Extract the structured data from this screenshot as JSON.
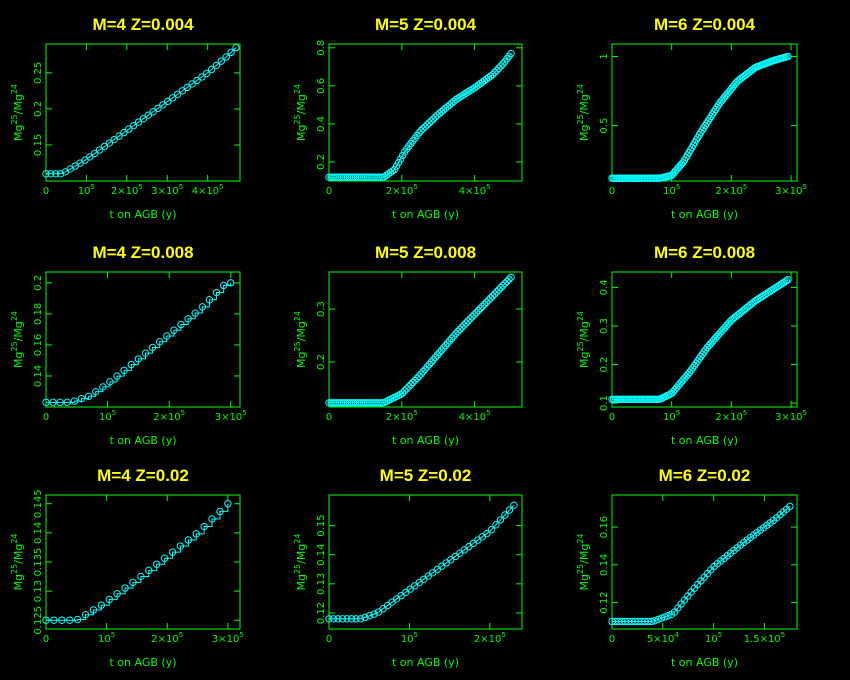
{
  "colors": {
    "background": "#000000",
    "axes": "#00ff00",
    "title": "#ffff00",
    "series": "#00ffff"
  },
  "chart_data": [
    {
      "type": "line",
      "title": "M=4   Z=0.004",
      "xlabel": "t on AGB (y)",
      "ylabel": [
        "Mg",
        "25",
        "/Mg",
        "24"
      ],
      "xlim": [
        0,
        480000
      ],
      "ylim": [
        0.1,
        0.29
      ],
      "xticks": [
        {
          "v": 0,
          "t": "0"
        },
        {
          "v": 100000,
          "t": "10",
          "e": "5"
        },
        {
          "v": 200000,
          "t": "2×10",
          "e": "5"
        },
        {
          "v": 300000,
          "t": "3×10",
          "e": "5"
        },
        {
          "v": 400000,
          "t": "4×10",
          "e": "5"
        }
      ],
      "yticks": [
        {
          "v": 0.15,
          "t": "0.15"
        },
        {
          "v": 0.2,
          "t": "0.2"
        },
        {
          "v": 0.25,
          "t": "0.25"
        }
      ],
      "step": false,
      "npts": 40,
      "anchors": [
        [
          0,
          0.11
        ],
        [
          40000,
          0.11
        ],
        [
          70000,
          0.12
        ],
        [
          100000,
          0.13
        ],
        [
          150000,
          0.15
        ],
        [
          200000,
          0.17
        ],
        [
          250000,
          0.19
        ],
        [
          300000,
          0.21
        ],
        [
          350000,
          0.23
        ],
        [
          400000,
          0.25
        ],
        [
          450000,
          0.274
        ],
        [
          470000,
          0.285
        ]
      ]
    },
    {
      "type": "line",
      "title": "M=5   Z=0.004",
      "xlabel": "t on AGB (y)",
      "ylabel": [
        "Mg",
        "25",
        "/Mg",
        "24"
      ],
      "xlim": [
        0,
        530000
      ],
      "ylim": [
        0.1,
        0.82
      ],
      "xticks": [
        {
          "v": 0,
          "t": "0"
        },
        {
          "v": 200000,
          "t": "2×10",
          "e": "5"
        },
        {
          "v": 400000,
          "t": "4×10",
          "e": "5"
        }
      ],
      "yticks": [
        {
          "v": 0.2,
          "t": "0.2"
        },
        {
          "v": 0.4,
          "t": "0.4"
        },
        {
          "v": 0.6,
          "t": "0.6"
        },
        {
          "v": 0.8,
          "t": "0.8"
        }
      ],
      "step": false,
      "npts": 90,
      "anchors": [
        [
          0,
          0.12
        ],
        [
          150000,
          0.12
        ],
        [
          180000,
          0.16
        ],
        [
          210000,
          0.26
        ],
        [
          250000,
          0.36
        ],
        [
          300000,
          0.45
        ],
        [
          350000,
          0.53
        ],
        [
          400000,
          0.59
        ],
        [
          450000,
          0.66
        ],
        [
          480000,
          0.72
        ],
        [
          500000,
          0.77
        ]
      ]
    },
    {
      "type": "line",
      "title": "M=6   Z=0.004",
      "xlabel": "t on AGB (y)",
      "ylabel": [
        "Mg",
        "25",
        "/Mg",
        "24"
      ],
      "xlim": [
        0,
        310000
      ],
      "ylim": [
        0.1,
        1.09
      ],
      "xticks": [
        {
          "v": 0,
          "t": "0"
        },
        {
          "v": 100000,
          "t": "10",
          "e": "5"
        },
        {
          "v": 200000,
          "t": "2×10",
          "e": "5"
        },
        {
          "v": 300000,
          "t": "3×10",
          "e": "5"
        }
      ],
      "yticks": [
        {
          "v": 0.5,
          "t": "0.5"
        },
        {
          "v": 1.0,
          "t": "1"
        }
      ],
      "step": false,
      "npts": 120,
      "anchors": [
        [
          0,
          0.12
        ],
        [
          80000,
          0.12
        ],
        [
          100000,
          0.14
        ],
        [
          120000,
          0.24
        ],
        [
          150000,
          0.46
        ],
        [
          180000,
          0.66
        ],
        [
          210000,
          0.82
        ],
        [
          240000,
          0.92
        ],
        [
          270000,
          0.97
        ],
        [
          295000,
          1.0
        ]
      ]
    },
    {
      "type": "line",
      "title": "M=4   Z=0.008",
      "xlabel": "t on AGB (y)",
      "ylabel": [
        "Mg",
        "25",
        "/Mg",
        "24"
      ],
      "xlim": [
        0,
        315000
      ],
      "ylim": [
        0.12,
        0.207
      ],
      "xticks": [
        {
          "v": 0,
          "t": "0"
        },
        {
          "v": 100000,
          "t": "10",
          "e": "5"
        },
        {
          "v": 200000,
          "t": "2×10",
          "e": "5"
        },
        {
          "v": 300000,
          "t": "3×10",
          "e": "5"
        }
      ],
      "yticks": [
        {
          "v": 0.14,
          "t": "0.14"
        },
        {
          "v": 0.16,
          "t": "0.16"
        },
        {
          "v": 0.18,
          "t": "0.18"
        },
        {
          "v": 0.2,
          "t": "0.2"
        }
      ],
      "step": true,
      "npts": 27,
      "anchors": [
        [
          0,
          0.123
        ],
        [
          40000,
          0.123
        ],
        [
          70000,
          0.127
        ],
        [
          100000,
          0.135
        ],
        [
          150000,
          0.151
        ],
        [
          200000,
          0.167
        ],
        [
          250000,
          0.183
        ],
        [
          290000,
          0.199
        ],
        [
          300000,
          0.2
        ]
      ]
    },
    {
      "type": "line",
      "title": "M=5   Z=0.008",
      "xlabel": "t on AGB (y)",
      "ylabel": [
        "Mg",
        "25",
        "/Mg",
        "24"
      ],
      "xlim": [
        0,
        530000
      ],
      "ylim": [
        0.115,
        0.37
      ],
      "xticks": [
        {
          "v": 0,
          "t": "0"
        },
        {
          "v": 200000,
          "t": "2×10",
          "e": "5"
        },
        {
          "v": 400000,
          "t": "4×10",
          "e": "5"
        }
      ],
      "yticks": [
        {
          "v": 0.2,
          "t": "0.2"
        },
        {
          "v": 0.3,
          "t": "0.3"
        }
      ],
      "step": false,
      "npts": 90,
      "anchors": [
        [
          0,
          0.123
        ],
        [
          150000,
          0.123
        ],
        [
          200000,
          0.14
        ],
        [
          250000,
          0.175
        ],
        [
          300000,
          0.215
        ],
        [
          350000,
          0.255
        ],
        [
          400000,
          0.29
        ],
        [
          450000,
          0.325
        ],
        [
          500000,
          0.36
        ]
      ]
    },
    {
      "type": "line",
      "title": "M=6   Z=0.008",
      "xlabel": "t on AGB (y)",
      "ylabel": [
        "Mg",
        "25",
        "/Mg",
        "24"
      ],
      "xlim": [
        0,
        310000
      ],
      "ylim": [
        0.09,
        0.44
      ],
      "xticks": [
        {
          "v": 0,
          "t": "0"
        },
        {
          "v": 100000,
          "t": "10",
          "e": "5"
        },
        {
          "v": 200000,
          "t": "2×10",
          "e": "5"
        },
        {
          "v": 300000,
          "t": "3×10",
          "e": "5"
        }
      ],
      "yticks": [
        {
          "v": 0.1,
          "t": "0.1"
        },
        {
          "v": 0.2,
          "t": "0.2"
        },
        {
          "v": 0.3,
          "t": "0.3"
        },
        {
          "v": 0.4,
          "t": "0.4"
        }
      ],
      "step": false,
      "npts": 110,
      "anchors": [
        [
          0,
          0.11
        ],
        [
          80000,
          0.11
        ],
        [
          100000,
          0.125
        ],
        [
          130000,
          0.18
        ],
        [
          160000,
          0.245
        ],
        [
          200000,
          0.315
        ],
        [
          240000,
          0.365
        ],
        [
          270000,
          0.395
        ],
        [
          295000,
          0.42
        ]
      ]
    },
    {
      "type": "line",
      "title": "M=4   Z=0.02",
      "xlabel": "t on AGB (y)",
      "ylabel": [
        "Mg",
        "25",
        "/Mg",
        "24"
      ],
      "xlim": [
        0,
        320000
      ],
      "ylim": [
        0.1235,
        0.1465
      ],
      "xticks": [
        {
          "v": 0,
          "t": "0"
        },
        {
          "v": 100000,
          "t": "10",
          "e": "5"
        },
        {
          "v": 200000,
          "t": "2×10",
          "e": "5"
        },
        {
          "v": 300000,
          "t": "3×10",
          "e": "5"
        }
      ],
      "yticks": [
        {
          "v": 0.125,
          "t": "0.125"
        },
        {
          "v": 0.13,
          "t": "0.13"
        },
        {
          "v": 0.135,
          "t": "0.135"
        },
        {
          "v": 0.14,
          "t": "0.14"
        },
        {
          "v": 0.145,
          "t": "0.145"
        }
      ],
      "step": true,
      "npts": 24,
      "anchors": [
        [
          0,
          0.125
        ],
        [
          50000,
          0.125
        ],
        [
          90000,
          0.1275
        ],
        [
          150000,
          0.132
        ],
        [
          200000,
          0.136
        ],
        [
          250000,
          0.14
        ],
        [
          300000,
          0.145
        ]
      ]
    },
    {
      "type": "line",
      "title": "M=5   Z=0.02",
      "xlabel": "t on AGB (y)",
      "ylabel": [
        "Mg",
        "25",
        "/Mg",
        "24"
      ],
      "xlim": [
        0,
        240000
      ],
      "ylim": [
        0.1145,
        0.1605
      ],
      "xticks": [
        {
          "v": 0,
          "t": "0"
        },
        {
          "v": 100000,
          "t": "10",
          "e": "5"
        },
        {
          "v": 200000,
          "t": "2×10",
          "e": "5"
        }
      ],
      "yticks": [
        {
          "v": 0.12,
          "t": "0.12"
        },
        {
          "v": 0.13,
          "t": "0.13"
        },
        {
          "v": 0.14,
          "t": "0.14"
        },
        {
          "v": 0.15,
          "t": "0.15"
        }
      ],
      "step": false,
      "npts": 42,
      "anchors": [
        [
          0,
          0.118
        ],
        [
          40000,
          0.118
        ],
        [
          60000,
          0.12
        ],
        [
          80000,
          0.124
        ],
        [
          110000,
          0.13
        ],
        [
          150000,
          0.138
        ],
        [
          200000,
          0.148
        ],
        [
          230000,
          0.157
        ]
      ]
    },
    {
      "type": "line",
      "title": "M=6   Z=0.02",
      "xlabel": "t on AGB (y)",
      "ylabel": [
        "Mg",
        "25",
        "/Mg",
        "24"
      ],
      "xlim": [
        0,
        182000
      ],
      "ylim": [
        0.106,
        0.177
      ],
      "xticks": [
        {
          "v": 0,
          "t": "0"
        },
        {
          "v": 50000,
          "t": "5×10",
          "e": "4"
        },
        {
          "v": 100000,
          "t": "10",
          "e": "5"
        },
        {
          "v": 150000,
          "t": "1.5×10",
          "e": "5"
        }
      ],
      "yticks": [
        {
          "v": 0.12,
          "t": "0.12"
        },
        {
          "v": 0.14,
          "t": "0.14"
        },
        {
          "v": 0.16,
          "t": "0.16"
        }
      ],
      "step": false,
      "npts": 55,
      "anchors": [
        [
          0,
          0.11
        ],
        [
          40000,
          0.11
        ],
        [
          60000,
          0.114
        ],
        [
          80000,
          0.127
        ],
        [
          100000,
          0.139
        ],
        [
          130000,
          0.152
        ],
        [
          160000,
          0.164
        ],
        [
          175000,
          0.171
        ]
      ]
    }
  ]
}
